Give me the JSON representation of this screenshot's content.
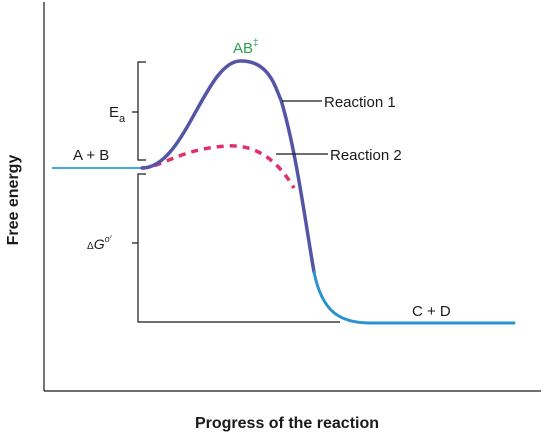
{
  "axes": {
    "y_label": "Free energy",
    "x_label": "Progress of the reaction"
  },
  "labels": {
    "transition_state": "AB",
    "transition_state_sup": "‡",
    "activation_energy": "E",
    "activation_energy_sub": "a",
    "delta_g_prefix": "Δ",
    "delta_g_main": "G",
    "delta_g_sup": "o′",
    "reactants": "A + B",
    "products": "C + D",
    "reaction_1": "Reaction 1",
    "reaction_2": "Reaction 2"
  },
  "colors": {
    "axis": "#1a1a1a",
    "reaction_1_curve": "#5555a8",
    "reaction_2_curve": "#e0306a",
    "baseline": "#2aa0d8",
    "transition_state_label": "#2fa04f",
    "bracket": "#1a1a1a"
  },
  "legend": {
    "reaction_1_style": "solid",
    "reaction_2_style": "dashed"
  }
}
